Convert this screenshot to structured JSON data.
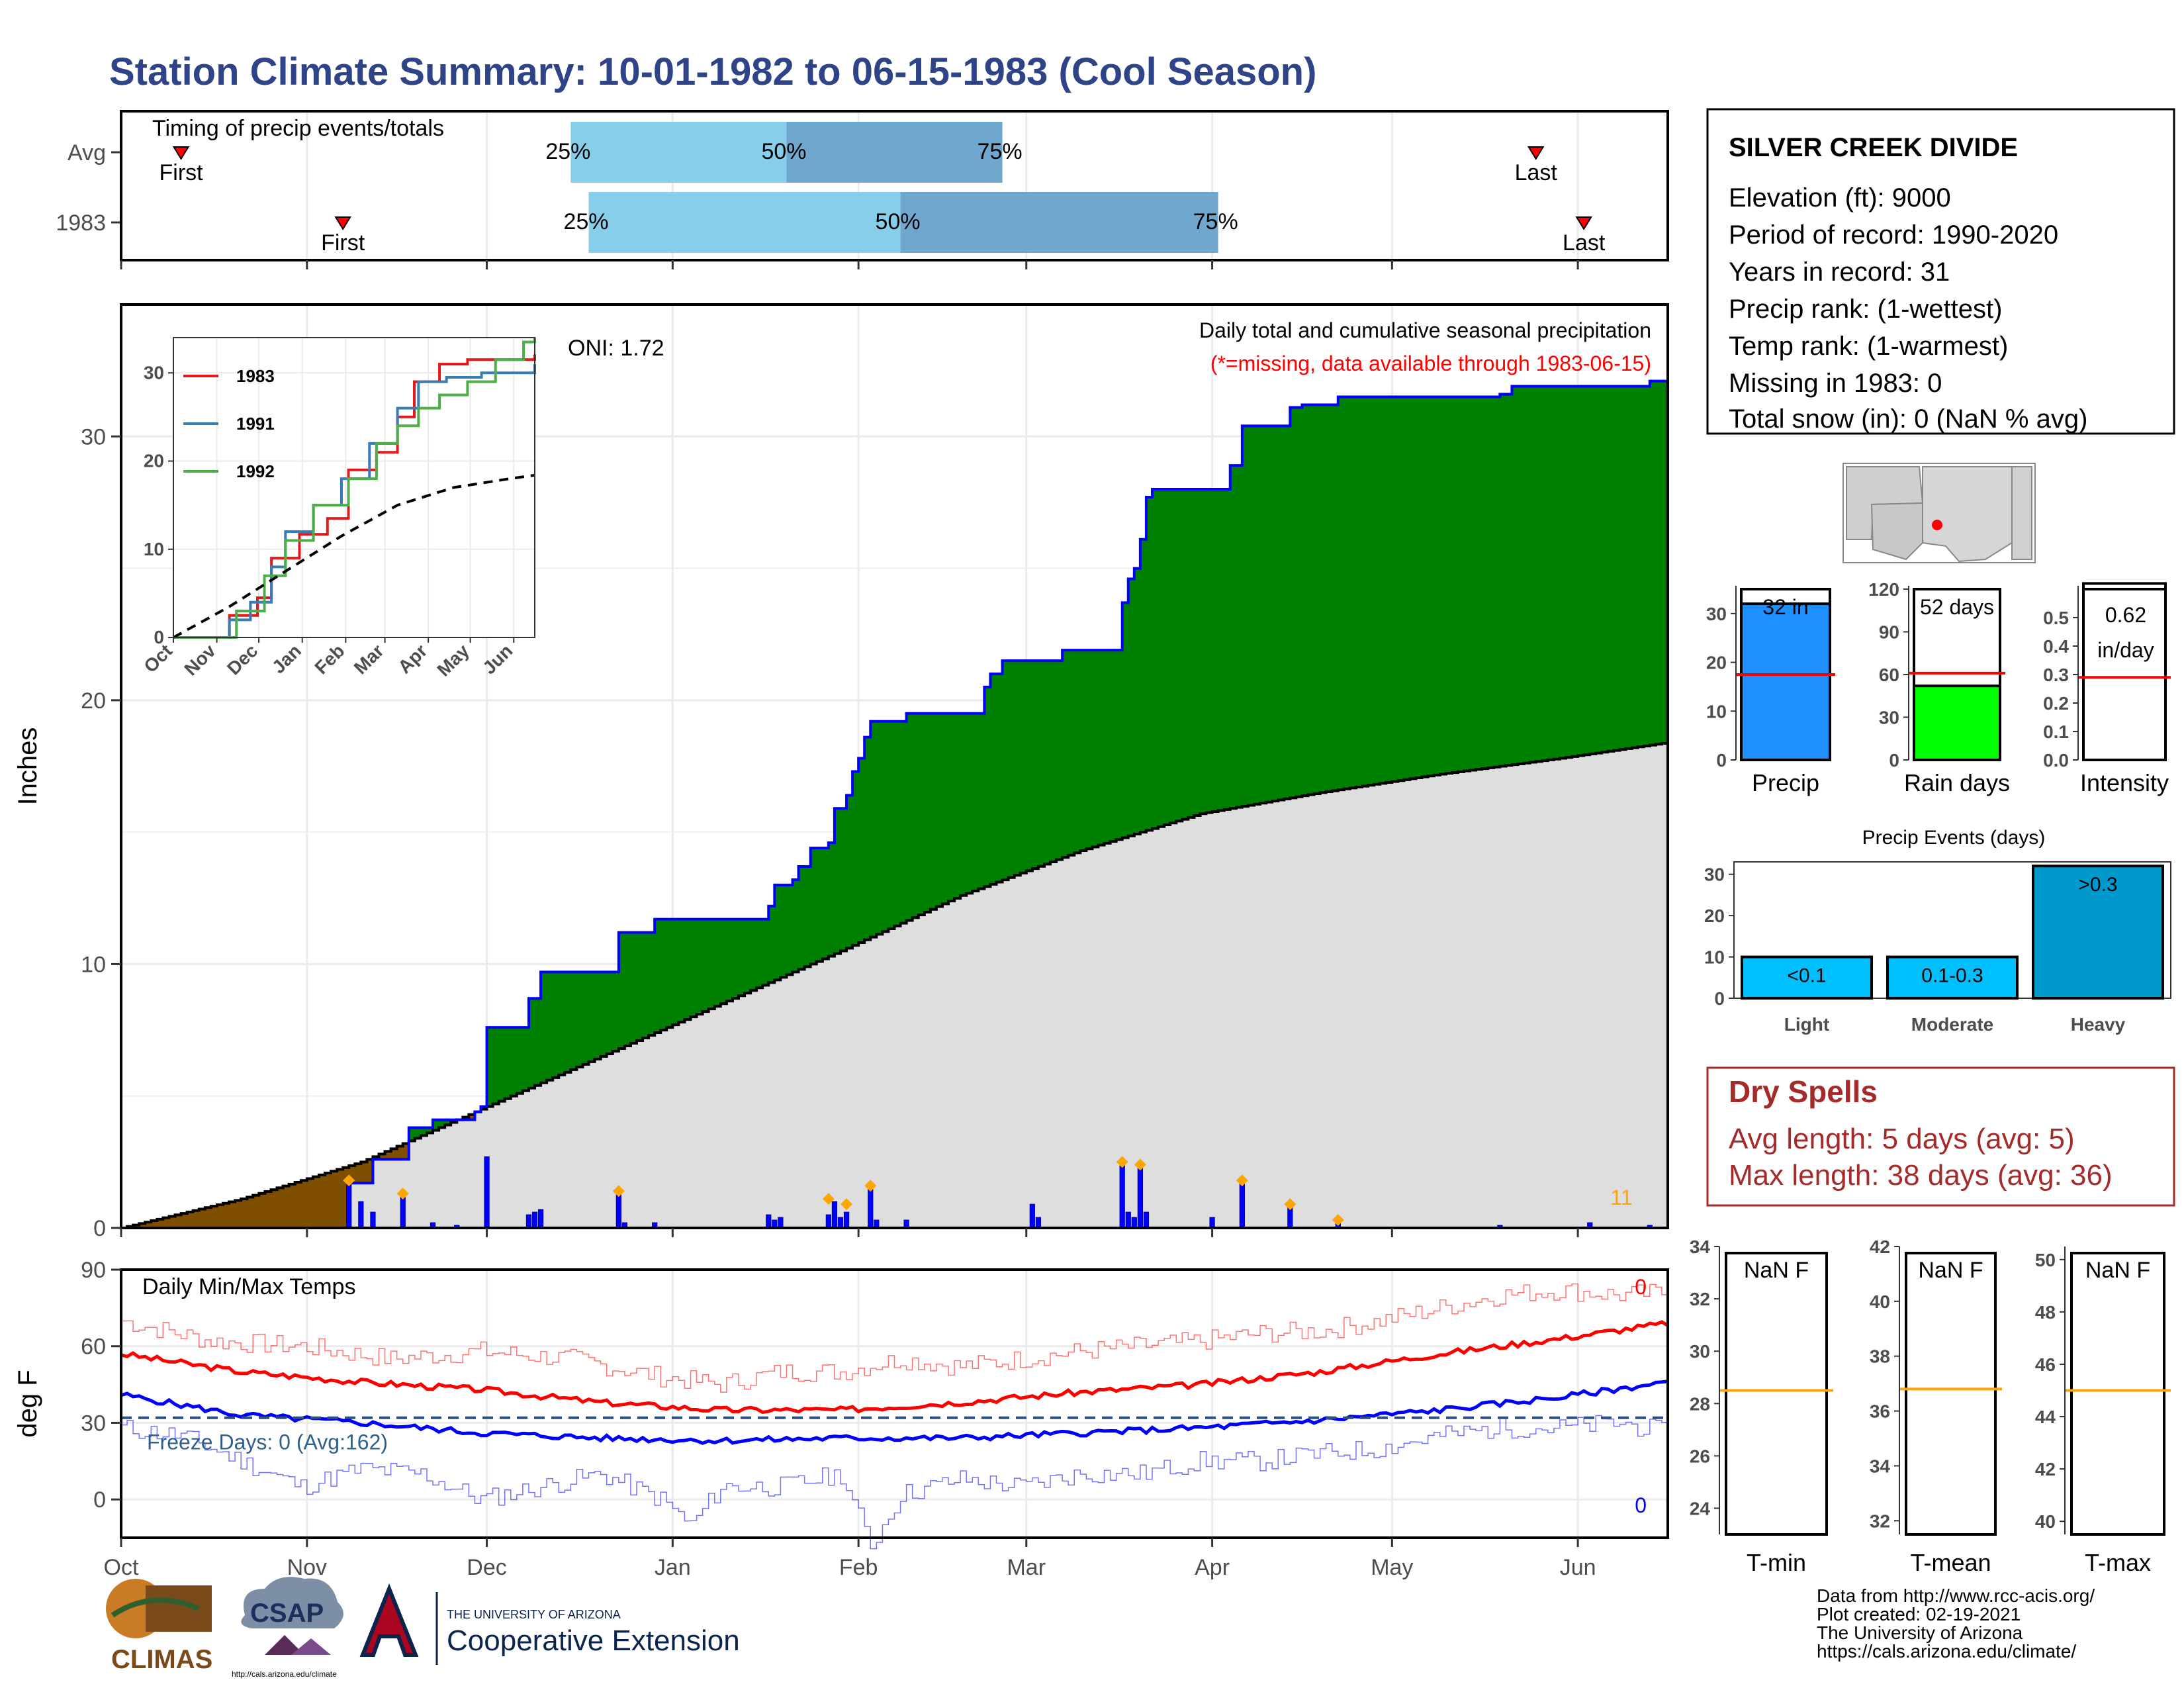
{
  "title": "Station Climate Summary: 10-01-1982 to 06-15-1983 (Cool Season)",
  "timing": {
    "label": "Timing of precip events/totals",
    "rows": [
      {
        "name": "Avg",
        "first_label": "First",
        "last_label": "Last",
        "p25": "25%",
        "p50": "50%",
        "p75": "75%",
        "first_day": 10,
        "q25_day": 75,
        "q50_day": 111,
        "q75_day": 147,
        "last_day": 236
      },
      {
        "name": "1983",
        "first_label": "First",
        "last_label": "Last",
        "p25": "25%",
        "p50": "50%",
        "p75": "75%",
        "first_day": 37,
        "q25_day": 78,
        "q50_day": 130,
        "q75_day": 183,
        "last_day": 244
      }
    ],
    "colors": {
      "light": "#87ceeb",
      "dark": "#6fa7cf",
      "border": "#0000ff",
      "marker": "#ff0000"
    }
  },
  "info": {
    "station": "SILVER CREEK DIVIDE",
    "lines": [
      "Elevation (ft): 9000",
      "Period of record: 1990-2020",
      "Years in record: 31",
      "Precip rank:  (1-wettest)",
      "Temp rank:  (1-warmest)",
      "Missing in 1983: 0",
      "Total snow (in): 0 (NaN % avg)"
    ]
  },
  "chart_data": [
    {
      "name": "Daily total and cumulative seasonal precipitation",
      "type": "area",
      "ylabel": "Inches",
      "ylim": [
        0,
        35
      ],
      "yticks": [
        0,
        10,
        20,
        30
      ],
      "months": [
        "Oct",
        "Nov",
        "Dec",
        "Jan",
        "Feb",
        "Mar",
        "Apr",
        "May",
        "Jun"
      ],
      "month_days": [
        0,
        31,
        61,
        92,
        123,
        151,
        182,
        212,
        243
      ],
      "season_days": 258,
      "subtitle": "Daily total and cumulative seasonal precipitation",
      "missing_note": "(*=missing, data available through 1983-06-15)",
      "oni": "ONI: 1.72",
      "corner_count": "11",
      "cumulative_1983": [
        [
          0,
          0
        ],
        [
          37,
          0
        ],
        [
          38,
          1.7
        ],
        [
          42,
          2.6
        ],
        [
          47,
          2.6
        ],
        [
          48,
          3.8
        ],
        [
          52,
          4.1
        ],
        [
          59,
          4.4
        ],
        [
          60,
          4.6
        ],
        [
          61,
          7.6
        ],
        [
          67,
          7.6
        ],
        [
          68,
          8.7
        ],
        [
          70,
          9.7
        ],
        [
          82,
          9.7
        ],
        [
          83,
          11.2
        ],
        [
          88,
          11.2
        ],
        [
          89,
          11.7
        ],
        [
          107,
          11.7
        ],
        [
          108,
          12.2
        ],
        [
          109,
          13.0
        ],
        [
          112,
          13.2
        ],
        [
          113,
          13.7
        ],
        [
          114,
          13.7
        ],
        [
          115,
          14.4
        ],
        [
          117,
          14.4
        ],
        [
          118,
          14.6
        ],
        [
          119,
          15.9
        ],
        [
          121,
          16.4
        ],
        [
          122,
          17.3
        ],
        [
          123,
          17.8
        ],
        [
          124,
          18.6
        ],
        [
          125,
          19.2
        ],
        [
          131,
          19.5
        ],
        [
          143,
          19.5
        ],
        [
          144,
          20.5
        ],
        [
          145,
          21.0
        ],
        [
          147,
          21.5
        ],
        [
          156,
          21.5
        ],
        [
          157,
          21.9
        ],
        [
          166,
          21.9
        ],
        [
          167,
          23.7
        ],
        [
          168,
          24.6
        ],
        [
          169,
          25.0
        ],
        [
          170,
          26.1
        ],
        [
          171,
          27.7
        ],
        [
          172,
          28.0
        ],
        [
          184,
          28.0
        ],
        [
          185,
          28.9
        ],
        [
          187,
          30.4
        ],
        [
          194,
          30.4
        ],
        [
          195,
          31.1
        ],
        [
          197,
          31.2
        ],
        [
          203,
          31.5
        ],
        [
          223,
          31.5
        ],
        [
          230,
          31.6
        ],
        [
          232,
          31.9
        ],
        [
          245,
          31.9
        ],
        [
          255,
          32.1
        ],
        [
          258,
          32.1
        ]
      ],
      "average_cumulative": [
        [
          0,
          0
        ],
        [
          20,
          1.1
        ],
        [
          40,
          2.5
        ],
        [
          60,
          4.5
        ],
        [
          80,
          6.5
        ],
        [
          100,
          8.5
        ],
        [
          120,
          10.5
        ],
        [
          140,
          12.6
        ],
        [
          160,
          14.3
        ],
        [
          180,
          15.7
        ],
        [
          200,
          16.5
        ],
        [
          220,
          17.2
        ],
        [
          240,
          17.8
        ],
        [
          258,
          18.4
        ]
      ],
      "daily_bars": [
        [
          38,
          1.7
        ],
        [
          40,
          1.0
        ],
        [
          42,
          0.6
        ],
        [
          47,
          1.2
        ],
        [
          52,
          0.2
        ],
        [
          56,
          0.1
        ],
        [
          61,
          2.7
        ],
        [
          68,
          0.5
        ],
        [
          69,
          0.6
        ],
        [
          70,
          0.7
        ],
        [
          83,
          1.3
        ],
        [
          84,
          0.2
        ],
        [
          89,
          0.2
        ],
        [
          108,
          0.5
        ],
        [
          109,
          0.3
        ],
        [
          110,
          0.4
        ],
        [
          118,
          0.5
        ],
        [
          119,
          1.0
        ],
        [
          120,
          0.4
        ],
        [
          121,
          0.6
        ],
        [
          125,
          1.5
        ],
        [
          126,
          0.3
        ],
        [
          131,
          0.3
        ],
        [
          152,
          0.9
        ],
        [
          153,
          0.4
        ],
        [
          167,
          2.4
        ],
        [
          168,
          0.6
        ],
        [
          169,
          0.4
        ],
        [
          170,
          2.3
        ],
        [
          171,
          0.6
        ],
        [
          182,
          0.4
        ],
        [
          187,
          1.7
        ],
        [
          195,
          0.8
        ],
        [
          203,
          0.2
        ],
        [
          230,
          0.1
        ],
        [
          245,
          0.2
        ],
        [
          255,
          0.1
        ]
      ],
      "event_markers": [
        [
          38,
          1.8
        ],
        [
          47,
          1.3
        ],
        [
          83,
          1.4
        ],
        [
          118,
          1.1
        ],
        [
          121,
          0.9
        ],
        [
          125,
          1.6
        ],
        [
          167,
          2.5
        ],
        [
          170,
          2.4
        ],
        [
          187,
          1.8
        ],
        [
          195,
          0.9
        ],
        [
          203,
          0.3
        ]
      ],
      "colors": {
        "above_avg": "#008000",
        "below_avg": "#7f4f00",
        "avg_fill": "#dedede",
        "line": "#0000ff",
        "marker": "#ffa500"
      }
    },
    {
      "name": "inset",
      "type": "line",
      "xlim": [
        0,
        258
      ],
      "ylim": [
        0,
        34
      ],
      "yticks": [
        0,
        10,
        20,
        30
      ],
      "months": [
        "Oct",
        "Nov",
        "Dec",
        "Jan",
        "Feb",
        "Mar",
        "Apr",
        "May",
        "Jun"
      ],
      "series": [
        {
          "name": "1983",
          "color": "#e31a1c",
          "values": [
            [
              0,
              0
            ],
            [
              30,
              0
            ],
            [
              40,
              2.5
            ],
            [
              60,
              4.5
            ],
            [
              70,
              9.0
            ],
            [
              90,
              11.7
            ],
            [
              110,
              13.5
            ],
            [
              125,
              19.0
            ],
            [
              145,
              21.0
            ],
            [
              160,
              25.0
            ],
            [
              172,
              29.0
            ],
            [
              190,
              31.0
            ],
            [
              210,
              31.5
            ],
            [
              258,
              32.1
            ]
          ]
        },
        {
          "name": "1991",
          "color": "#377eb8",
          "values": [
            [
              0,
              0
            ],
            [
              25,
              0
            ],
            [
              40,
              2.0
            ],
            [
              55,
              4.0
            ],
            [
              70,
              8.0
            ],
            [
              80,
              12.0
            ],
            [
              100,
              15.0
            ],
            [
              120,
              18.0
            ],
            [
              140,
              22.0
            ],
            [
              160,
              26.0
            ],
            [
              175,
              29.0
            ],
            [
              195,
              29.5
            ],
            [
              220,
              30.0
            ],
            [
              258,
              31.0
            ]
          ]
        },
        {
          "name": "1992",
          "color": "#4daf4a",
          "values": [
            [
              0,
              0
            ],
            [
              30,
              0
            ],
            [
              45,
              3.0
            ],
            [
              65,
              7.0
            ],
            [
              80,
              11.0
            ],
            [
              100,
              15.0
            ],
            [
              125,
              18.0
            ],
            [
              145,
              22.0
            ],
            [
              160,
              24.0
            ],
            [
              175,
              26.0
            ],
            [
              190,
              27.5
            ],
            [
              210,
              29.0
            ],
            [
              230,
              31.5
            ],
            [
              250,
              33.5
            ],
            [
              258,
              34.0
            ]
          ]
        },
        {
          "name": "Average",
          "color": "#000000",
          "values": [
            [
              0,
              0
            ],
            [
              40,
              3.5
            ],
            [
              80,
              7.5
            ],
            [
              120,
              11.5
            ],
            [
              160,
              15.0
            ],
            [
              200,
              17.0
            ],
            [
              240,
              18.0
            ],
            [
              258,
              18.4
            ]
          ]
        }
      ]
    },
    {
      "name": "Daily Min/Max Temps",
      "type": "line",
      "ylabel": "deg F",
      "ylim": [
        -15,
        90
      ],
      "yticks": [
        0,
        30,
        60,
        90
      ],
      "freeze_line": 32,
      "freeze_label": "Freeze Days: 0 (Avg:162)",
      "max_count": "0",
      "min_count": "0",
      "avg_max": [
        [
          0,
          57
        ],
        [
          20,
          50
        ],
        [
          40,
          46
        ],
        [
          60,
          43
        ],
        [
          80,
          38
        ],
        [
          100,
          35
        ],
        [
          120,
          35
        ],
        [
          140,
          38
        ],
        [
          160,
          42
        ],
        [
          180,
          45
        ],
        [
          200,
          50
        ],
        [
          220,
          57
        ],
        [
          240,
          63
        ],
        [
          258,
          69
        ]
      ],
      "avg_min": [
        [
          0,
          41
        ],
        [
          20,
          33
        ],
        [
          40,
          30
        ],
        [
          60,
          26
        ],
        [
          80,
          24
        ],
        [
          100,
          23
        ],
        [
          120,
          24
        ],
        [
          140,
          24
        ],
        [
          160,
          26
        ],
        [
          180,
          28
        ],
        [
          200,
          31
        ],
        [
          220,
          35
        ],
        [
          240,
          40
        ],
        [
          258,
          46
        ]
      ],
      "max_1983": [
        [
          0,
          70
        ],
        [
          15,
          62
        ],
        [
          30,
          60
        ],
        [
          45,
          55
        ],
        [
          60,
          58
        ],
        [
          75,
          55
        ],
        [
          90,
          48
        ],
        [
          100,
          45
        ],
        [
          110,
          50
        ],
        [
          120,
          50
        ],
        [
          130,
          55
        ],
        [
          140,
          52
        ],
        [
          150,
          55
        ],
        [
          160,
          58
        ],
        [
          170,
          60
        ],
        [
          180,
          62
        ],
        [
          190,
          65
        ],
        [
          200,
          66
        ],
        [
          210,
          70
        ],
        [
          220,
          75
        ],
        [
          230,
          80
        ],
        [
          240,
          82
        ],
        [
          250,
          80
        ],
        [
          258,
          81
        ]
      ],
      "min_1983": [
        [
          0,
          28
        ],
        [
          10,
          25
        ],
        [
          20,
          15
        ],
        [
          30,
          5
        ],
        [
          40,
          12
        ],
        [
          50,
          10
        ],
        [
          60,
          0
        ],
        [
          70,
          5
        ],
        [
          80,
          10
        ],
        [
          90,
          0
        ],
        [
          95,
          -10
        ],
        [
          100,
          5
        ],
        [
          110,
          5
        ],
        [
          120,
          10
        ],
        [
          125,
          -18
        ],
        [
          130,
          2
        ],
        [
          140,
          8
        ],
        [
          150,
          5
        ],
        [
          160,
          10
        ],
        [
          170,
          10
        ],
        [
          180,
          15
        ],
        [
          190,
          15
        ],
        [
          200,
          18
        ],
        [
          210,
          20
        ],
        [
          220,
          25
        ],
        [
          230,
          28
        ],
        [
          240,
          28
        ],
        [
          250,
          30
        ],
        [
          258,
          26
        ]
      ],
      "colors": {
        "max": "#ff0000",
        "min": "#0000ff",
        "freeze": "#2f4f7f"
      }
    },
    {
      "name": "summary bars",
      "type": "bar",
      "categories": [
        "Precip",
        "Rain days",
        "Intensity"
      ],
      "values": [
        32,
        52,
        0.62
      ],
      "averages": [
        17.5,
        61,
        0.29
      ],
      "ylims": [
        [
          0,
          35
        ],
        [
          0,
          120
        ],
        [
          0,
          0.6
        ]
      ],
      "yticks": [
        [
          "0",
          "10",
          "20",
          "30"
        ],
        [
          "0",
          "30",
          "60",
          "90",
          "120"
        ],
        [
          "0.0",
          "0.1",
          "0.2",
          "0.3",
          "0.4",
          "0.5"
        ]
      ],
      "labels": [
        "32 in",
        "52 days",
        "0.62 in/day"
      ],
      "colors": [
        "#1e90ff",
        "#00ff00",
        "#ffffff"
      ]
    },
    {
      "name": "Precip Events (days)",
      "type": "bar",
      "title": "Precip Events (days)",
      "categories": [
        "Light",
        "Moderate",
        "Heavy"
      ],
      "bar_labels": [
        "<0.1",
        "0.1-0.3",
        ">0.3"
      ],
      "values": [
        10,
        10,
        32
      ],
      "ylim": [
        0,
        33
      ],
      "yticks": [
        0,
        10,
        20,
        30
      ],
      "colors": [
        "#00bfff",
        "#00bfff",
        "#0099cc"
      ]
    },
    {
      "name": "temperature summaries",
      "type": "bar",
      "categories": [
        "T-min",
        "T-mean",
        "T-max"
      ],
      "values_text": [
        "NaN F",
        "NaN F",
        "NaN F"
      ],
      "averages": [
        28.5,
        36.8,
        45
      ],
      "ylims": [
        [
          23,
          34
        ],
        [
          31.5,
          42
        ],
        [
          39.5,
          50.5
        ]
      ],
      "yticks": [
        [
          24,
          26,
          28,
          30,
          32,
          34
        ],
        [
          32,
          34,
          36,
          38,
          40,
          42
        ],
        [
          40,
          42,
          44,
          46,
          48,
          50
        ]
      ],
      "avg_color": "#ffa500"
    }
  ],
  "dry_spells": {
    "title": "Dry Spells",
    "avg": "Avg length: 5 days (avg: 5)",
    "max": "Max length: 38 days (avg: 36)"
  },
  "credits": {
    "lines": [
      "Data from http://www.rcc-acis.org/",
      "Plot created: 02-19-2021",
      "The University of Arizona",
      "https://cals.arizona.edu/climate/"
    ]
  },
  "logos": {
    "climas": "CLIMAS",
    "csap": "CSAP",
    "csap_url": "http://cals.arizona.edu/climate",
    "ua_line1": "THE UNIVERSITY OF ARIZONA",
    "ua_line2": "Cooperative Extension"
  }
}
